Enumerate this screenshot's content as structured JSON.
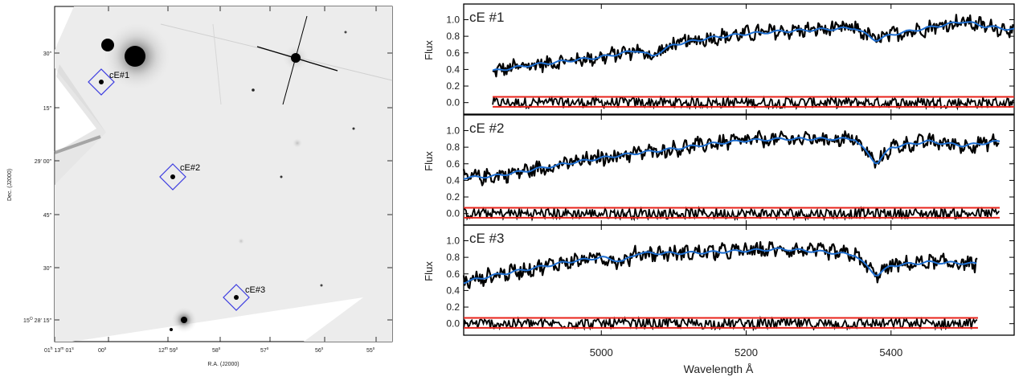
{
  "image_panel": {
    "x_title": "R.A. (J2000)",
    "y_title": "Dec. (J2000)",
    "ra_ticks": [
      {
        "h": "01",
        "hu": "h",
        "m": "13",
        "mu": "m",
        "s": "01",
        "su": "s"
      },
      {
        "s": "00",
        "su": "s"
      },
      {
        "m": "12",
        "mu": "m",
        "s": "59",
        "su": "s"
      },
      {
        "s": "58",
        "su": "s"
      },
      {
        "s": "57",
        "su": "s"
      },
      {
        "s": "56",
        "su": "s"
      },
      {
        "s": "55",
        "su": "s"
      }
    ],
    "dec_ticks": [
      {
        "text": "30″"
      },
      {
        "text": "15″"
      },
      {
        "text": "29′ 00″"
      },
      {
        "text": "45″"
      },
      {
        "text": "30″"
      },
      {
        "d": "15",
        "du": "O",
        "text": " 28′ 15″"
      }
    ],
    "markers": [
      {
        "label": "cE#1"
      },
      {
        "label": "cE#2"
      },
      {
        "label": "cE#3"
      }
    ]
  },
  "chart_data": {
    "type": "line",
    "x_label": "Wavelength Å",
    "x_ticks": [
      5000,
      5200,
      5400
    ],
    "x_range": [
      4810,
      5570
    ],
    "colors": {
      "data": "#000000",
      "model": "#1f6fd1",
      "residual_band": "#e8231b"
    },
    "panels": [
      {
        "title": "cE #1",
        "y_label": "Flux",
        "y_ticks": [
          "1.0",
          "0.8",
          "0.6",
          "0.4",
          "0.2",
          "0.0"
        ],
        "y_range": [
          -0.1,
          1.15
        ],
        "x_coverage": [
          4850,
          5570
        ],
        "model_points": [
          [
            4850,
            0.38
          ],
          [
            4900,
            0.45
          ],
          [
            4950,
            0.5
          ],
          [
            5000,
            0.55
          ],
          [
            5050,
            0.63
          ],
          [
            5070,
            0.56
          ],
          [
            5100,
            0.7
          ],
          [
            5150,
            0.78
          ],
          [
            5200,
            0.83
          ],
          [
            5250,
            0.86
          ],
          [
            5300,
            0.88
          ],
          [
            5350,
            0.9
          ],
          [
            5380,
            0.75
          ],
          [
            5400,
            0.82
          ],
          [
            5450,
            0.9
          ],
          [
            5500,
            0.98
          ],
          [
            5530,
            0.92
          ],
          [
            5570,
            0.88
          ]
        ],
        "residual_band": [
          -0.05,
          0.07
        ]
      },
      {
        "title": "cE #2",
        "y_label": "Flux",
        "y_ticks": [
          "1.0",
          "0.8",
          "0.6",
          "0.4",
          "0.2",
          "0.0"
        ],
        "y_range": [
          -0.1,
          1.15
        ],
        "x_coverage": [
          4810,
          5550
        ],
        "model_points": [
          [
            4810,
            0.43
          ],
          [
            4850,
            0.45
          ],
          [
            4900,
            0.52
          ],
          [
            4950,
            0.6
          ],
          [
            5000,
            0.67
          ],
          [
            5050,
            0.73
          ],
          [
            5100,
            0.78
          ],
          [
            5150,
            0.84
          ],
          [
            5200,
            0.88
          ],
          [
            5250,
            0.9
          ],
          [
            5300,
            0.9
          ],
          [
            5350,
            0.9
          ],
          [
            5380,
            0.6
          ],
          [
            5400,
            0.8
          ],
          [
            5450,
            0.87
          ],
          [
            5500,
            0.82
          ],
          [
            5550,
            0.87
          ]
        ],
        "residual_band": [
          -0.05,
          0.07
        ]
      },
      {
        "title": "cE #3",
        "y_label": "Flux",
        "y_ticks": [
          "1.0",
          "0.8",
          "0.6",
          "0.4",
          "0.2",
          "0.0"
        ],
        "y_range": [
          -0.1,
          1.15
        ],
        "x_coverage": [
          4810,
          5520
        ],
        "model_points": [
          [
            4810,
            0.5
          ],
          [
            4850,
            0.58
          ],
          [
            4900,
            0.66
          ],
          [
            4950,
            0.74
          ],
          [
            5000,
            0.8
          ],
          [
            5030,
            0.75
          ],
          [
            5050,
            0.85
          ],
          [
            5100,
            0.85
          ],
          [
            5150,
            0.86
          ],
          [
            5200,
            0.88
          ],
          [
            5250,
            0.9
          ],
          [
            5300,
            0.87
          ],
          [
            5350,
            0.83
          ],
          [
            5380,
            0.58
          ],
          [
            5400,
            0.7
          ],
          [
            5450,
            0.74
          ],
          [
            5500,
            0.73
          ],
          [
            5520,
            0.72
          ]
        ],
        "residual_band": [
          -0.05,
          0.07
        ]
      }
    ]
  }
}
